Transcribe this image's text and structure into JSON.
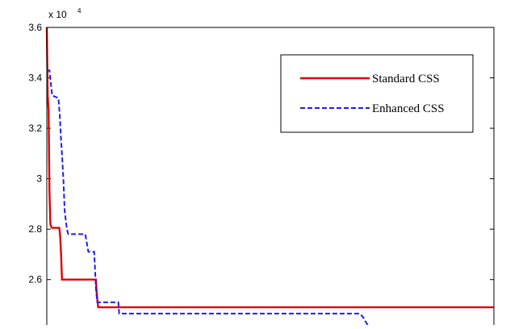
{
  "chart_data": {
    "type": "line",
    "title": "",
    "xlabel": "",
    "ylabel": "",
    "exponent_label": "x 10",
    "exponent_power": "4",
    "y_scale_factor": 10000,
    "xlim": [
      0,
      100
    ],
    "ylim": [
      2.42,
      3.6
    ],
    "yticks": [
      2.6,
      2.8,
      3.0,
      3.2,
      3.4,
      3.6
    ],
    "ytick_labels": [
      "2.6",
      "2.8",
      "3",
      "3.2",
      "3.4",
      "3.6"
    ],
    "grid": false,
    "legend": {
      "placement": "top-right"
    },
    "series": [
      {
        "name": "Standard CSS",
        "color": "#e00000",
        "style": "solid",
        "x": [
          0,
          0.2,
          0.4,
          0.6,
          0.8,
          1.0,
          1.2,
          2.8,
          3.0,
          3.2,
          3.4,
          11.0,
          11.1,
          11.3,
          11.5,
          100
        ],
        "y": [
          3.6,
          3.33,
          3.27,
          2.95,
          2.82,
          2.81,
          2.805,
          2.805,
          2.77,
          2.7,
          2.6,
          2.6,
          2.565,
          2.52,
          2.49,
          2.49
        ]
      },
      {
        "name": "Enhanced CSS",
        "color": "#1e1ef0",
        "style": "dashed",
        "x": [
          0,
          0.6,
          1.2,
          2.6,
          2.9,
          3.2,
          3.4,
          3.7,
          4.0,
          4.5,
          4.8,
          8.6,
          8.8,
          9.1,
          9.3,
          10.6,
          10.8,
          11.0,
          11.3,
          16.0,
          16.2,
          70.0,
          70.8,
          71.4,
          71.8
        ],
        "y": [
          3.43,
          3.43,
          3.33,
          3.32,
          3.25,
          3.15,
          3.1,
          3.0,
          2.87,
          2.8,
          2.78,
          2.78,
          2.76,
          2.73,
          2.71,
          2.71,
          2.64,
          2.56,
          2.51,
          2.51,
          2.465,
          2.465,
          2.45,
          2.43,
          2.42
        ]
      }
    ]
  }
}
